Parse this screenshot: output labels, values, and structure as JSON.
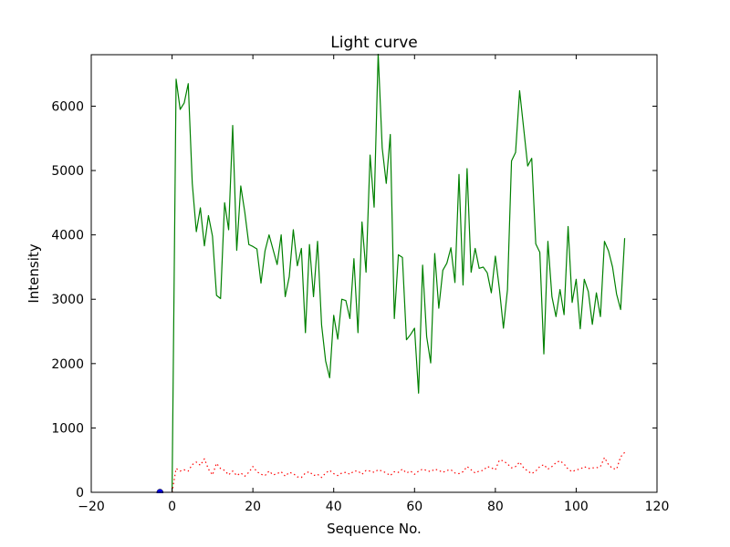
{
  "chart_data": {
    "type": "line",
    "title": "Light curve",
    "xlabel": "Sequence No.",
    "ylabel": "Intensity",
    "xlim": [
      -20,
      120
    ],
    "ylim": [
      0,
      6800
    ],
    "grid": false,
    "x_ticks": [
      -20,
      0,
      20,
      40,
      60,
      80,
      100,
      120
    ],
    "y_ticks": [
      0,
      1000,
      2000,
      3000,
      4000,
      5000,
      6000
    ],
    "x_tick_labels": [
      "−20",
      "0",
      "20",
      "40",
      "60",
      "80",
      "100",
      "120"
    ],
    "y_tick_labels": [
      "0",
      "1000",
      "2000",
      "3000",
      "4000",
      "5000",
      "6000"
    ],
    "series": [
      {
        "color": "#008000",
        "style": "solid",
        "x": [
          0,
          1,
          2,
          3,
          4,
          5,
          6,
          7,
          8,
          9,
          10,
          11,
          12,
          13,
          14,
          15,
          16,
          17,
          18,
          19,
          20,
          21,
          22,
          23,
          24,
          25,
          26,
          27,
          28,
          29,
          30,
          31,
          32,
          33,
          34,
          35,
          36,
          37,
          38,
          39,
          40,
          41,
          42,
          43,
          44,
          45,
          46,
          47,
          48,
          49,
          50,
          51,
          52,
          53,
          54,
          55,
          56,
          57,
          58,
          59,
          60,
          61,
          62,
          63,
          64,
          65,
          66,
          67,
          68,
          69,
          70,
          71,
          72,
          73,
          74,
          75,
          76,
          77,
          78,
          79,
          80,
          81,
          82,
          83,
          84,
          85,
          86,
          87,
          88,
          89,
          90,
          91,
          92,
          93,
          94,
          95,
          96,
          97,
          98,
          99,
          100,
          101,
          102,
          103,
          104,
          105,
          106,
          107,
          108,
          109,
          110,
          111,
          112
        ],
        "y": [
          0,
          6420,
          5950,
          6050,
          6350,
          4800,
          4050,
          4420,
          3830,
          4300,
          3980,
          3060,
          3010,
          4500,
          4080,
          5700,
          3760,
          4760,
          4350,
          3850,
          3820,
          3780,
          3250,
          3750,
          4000,
          3770,
          3540,
          4000,
          3040,
          3350,
          4080,
          3520,
          3790,
          2480,
          3850,
          3040,
          3900,
          2600,
          2040,
          1780,
          2750,
          2380,
          3000,
          2980,
          2700,
          3630,
          2480,
          4200,
          3420,
          5240,
          4430,
          6820,
          5350,
          4800,
          5560,
          2700,
          3690,
          3650,
          2370,
          2450,
          2550,
          1540,
          3530,
          2420,
          2010,
          3710,
          2860,
          3450,
          3560,
          3800,
          3260,
          4940,
          3220,
          5030,
          3420,
          3790,
          3480,
          3500,
          3410,
          3100,
          3670,
          3160,
          2550,
          3150,
          5150,
          5280,
          6240,
          5660,
          5070,
          5190,
          3860,
          3730,
          2150,
          3900,
          3040,
          2730,
          3150,
          2760,
          4130,
          2950,
          3310,
          2540,
          3310,
          3120,
          2610,
          3100,
          2730,
          3900,
          3750,
          3500,
          3080,
          2840,
          3950
        ]
      },
      {
        "color": "#ff0000",
        "style": "dotted",
        "x": [
          0,
          1,
          2,
          3,
          4,
          5,
          6,
          7,
          8,
          9,
          10,
          11,
          12,
          13,
          14,
          15,
          16,
          17,
          18,
          19,
          20,
          21,
          22,
          23,
          24,
          25,
          26,
          27,
          28,
          29,
          30,
          31,
          32,
          33,
          34,
          35,
          36,
          37,
          38,
          39,
          40,
          41,
          42,
          43,
          44,
          45,
          46,
          47,
          48,
          49,
          50,
          51,
          52,
          53,
          54,
          55,
          56,
          57,
          58,
          59,
          60,
          61,
          62,
          63,
          64,
          65,
          66,
          67,
          68,
          69,
          70,
          71,
          72,
          73,
          74,
          75,
          76,
          77,
          78,
          79,
          80,
          81,
          82,
          83,
          84,
          85,
          86,
          87,
          88,
          89,
          90,
          91,
          92,
          93,
          94,
          95,
          96,
          97,
          98,
          99,
          100,
          101,
          102,
          103,
          104,
          105,
          106,
          107,
          108,
          109,
          110,
          111,
          112
        ],
        "y": [
          0,
          370,
          330,
          350,
          330,
          430,
          470,
          420,
          520,
          360,
          270,
          450,
          370,
          340,
          270,
          330,
          260,
          300,
          250,
          310,
          400,
          320,
          280,
          260,
          330,
          270,
          290,
          320,
          250,
          310,
          290,
          240,
          230,
          300,
          320,
          260,
          280,
          230,
          300,
          340,
          290,
          260,
          300,
          310,
          280,
          330,
          330,
          280,
          340,
          330,
          310,
          350,
          330,
          300,
          260,
          320,
          310,
          360,
          300,
          330,
          280,
          330,
          360,
          340,
          320,
          360,
          340,
          310,
          340,
          350,
          300,
          290,
          320,
          400,
          350,
          300,
          330,
          340,
          400,
          380,
          350,
          500,
          490,
          440,
          380,
          400,
          470,
          380,
          330,
          290,
          330,
          400,
          430,
          360,
          400,
          460,
          490,
          440,
          360,
          320,
          350,
          360,
          400,
          370,
          380,
          380,
          400,
          540,
          430,
          370,
          360,
          550,
          620
        ]
      },
      {
        "color": "#0000ff",
        "style": "marker",
        "x": [
          -3
        ],
        "y": [
          0
        ]
      }
    ]
  }
}
